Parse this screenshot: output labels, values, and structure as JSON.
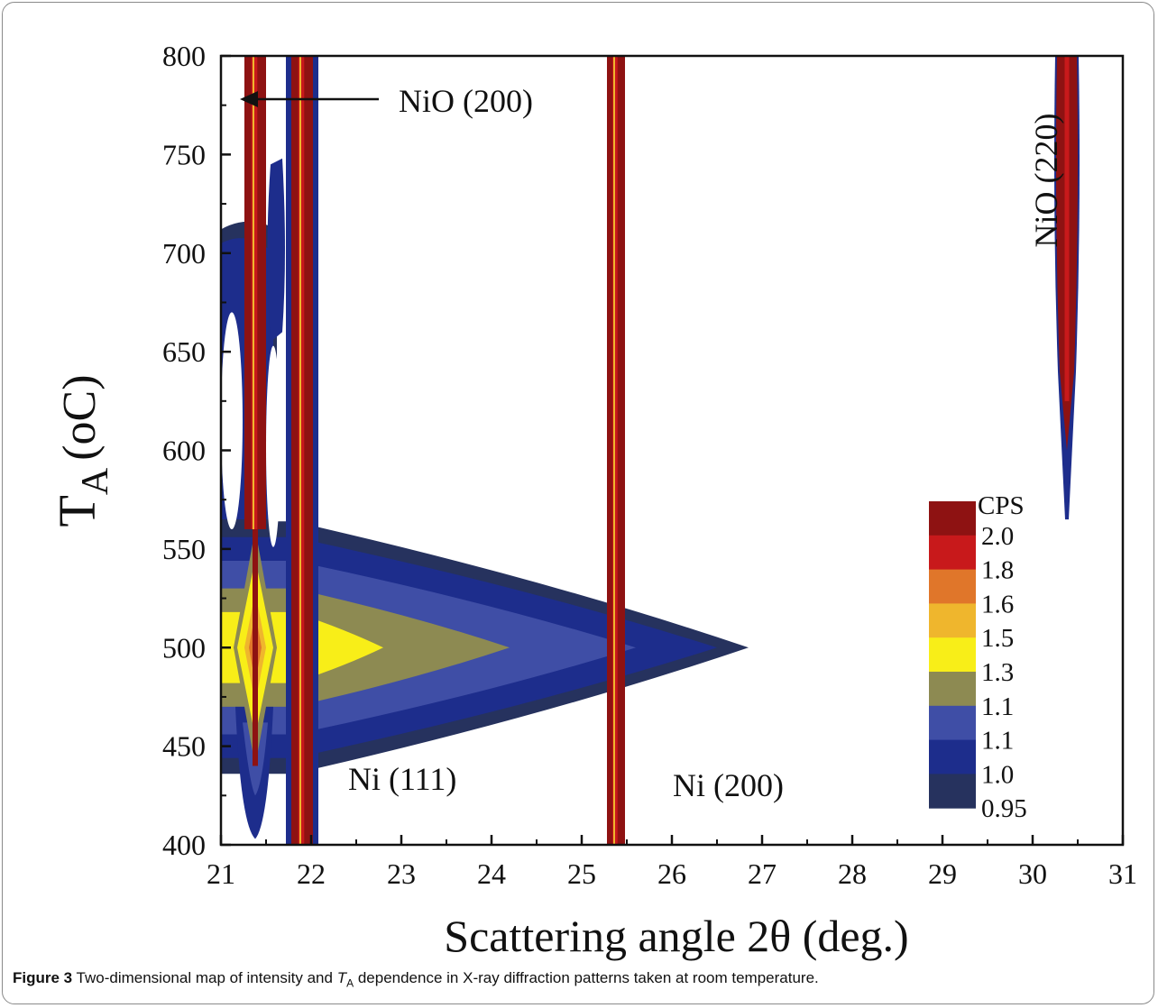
{
  "chart_data": {
    "type": "heatmap",
    "title": "",
    "xlabel": "Scattering angle 2θ (deg.)",
    "ylabel_main": "T",
    "ylabel_sub": "A",
    "ylabel_unit": "(oC)",
    "xlim": [
      21,
      31
    ],
    "ylim": [
      400,
      800
    ],
    "x_ticks": [
      "21",
      "22",
      "23",
      "24",
      "25",
      "26",
      "27",
      "28",
      "29",
      "30",
      "31"
    ],
    "y_ticks": [
      "400",
      "450",
      "500",
      "550",
      "600",
      "650",
      "700",
      "750",
      "800"
    ],
    "legend": {
      "title": "CPS",
      "position": "bottom-right",
      "levels": [
        "2.0",
        "1.8",
        "1.6",
        "1.5",
        "1.3",
        "1.1",
        "1.1",
        "1.0",
        "0.95"
      ],
      "colors": [
        "#8e1212",
        "#c8191b",
        "#e0762a",
        "#efb62d",
        "#f8ee18",
        "#8d8a52",
        "#3f4ea6",
        "#1d2d8c",
        "#26325e"
      ]
    },
    "peaks": [
      {
        "label": "NiO (200)",
        "x": 21.4,
        "y_range": [
          400,
          800
        ]
      },
      {
        "label": "Ni (111)",
        "x": 21.9,
        "y_range": [
          400,
          800
        ]
      },
      {
        "label": "Ni (200)",
        "x": 25.4,
        "y_range": [
          400,
          800
        ]
      },
      {
        "label": "NiO (220)",
        "x": 30.4,
        "y_range": [
          565,
          800
        ]
      }
    ],
    "annotations": [
      "NiO (200)",
      "Ni (111)",
      "Ni (200)",
      "NiO (220)"
    ]
  },
  "caption": {
    "label": "Figure 3",
    "text_a": " Two-dimensional map of intensity and ",
    "ta_main": "T",
    "ta_sub": "A",
    "text_b": " dependence in X-ray diffraction patterns taken at room temperature."
  }
}
